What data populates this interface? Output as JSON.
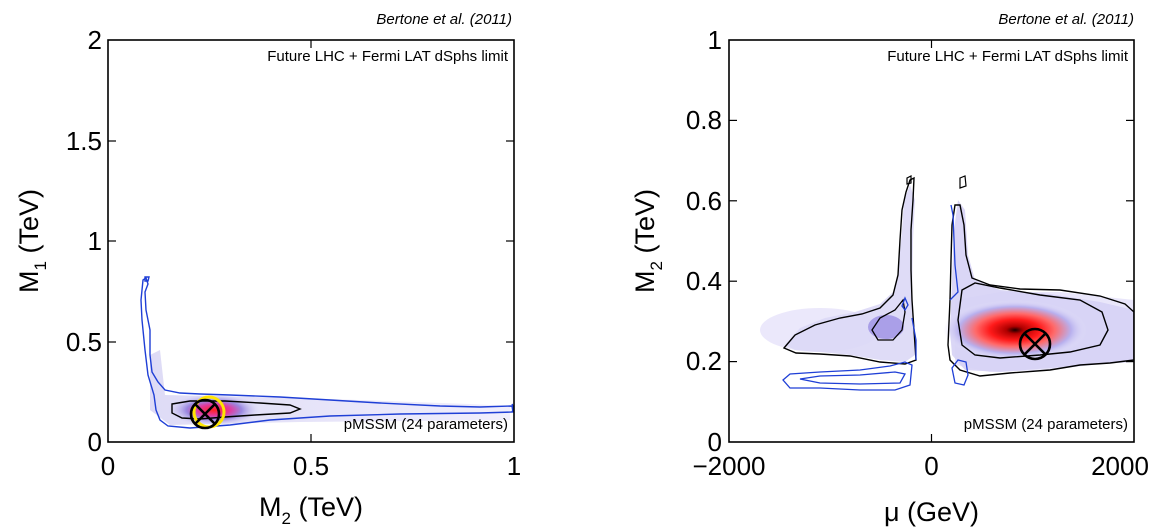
{
  "chart_data": [
    {
      "type": "heatmap",
      "citation": "Bertone et al. (2011)",
      "top_label": "Future LHC + Fermi LAT dSphs limit",
      "bottom_label": "pMSSM (24 parameters)",
      "xlabel": "M",
      "xlabel_sub": "2",
      "xlabel_unit": " (TeV)",
      "ylabel": "M",
      "ylabel_sub": "1",
      "ylabel_unit": " (TeV)",
      "xlim": [
        0,
        1
      ],
      "ylim": [
        0,
        2
      ],
      "xticks": [
        "0",
        "0.5",
        "1"
      ],
      "yticks": [
        "0",
        "0.5",
        "1",
        "1.5",
        "2"
      ],
      "best_fit_point": {
        "x": 0.24,
        "y": 0.14
      },
      "posterior_peak": {
        "x": 0.26,
        "y": 0.15
      },
      "colors": {
        "contour_68": "#000000",
        "contour_95": "#1f3fd6",
        "peak": "#ff2020",
        "low": "#c9c6ee",
        "best_fit_marker": "#000000",
        "highlight": "#ffe600"
      }
    },
    {
      "type": "heatmap",
      "citation": "Bertone et al. (2011)",
      "top_label": "Future LHC + Fermi LAT dSphs limit",
      "bottom_label": "pMSSM (24 parameters)",
      "xlabel": "μ (GeV)",
      "ylabel": "M",
      "ylabel_sub": "2",
      "ylabel_unit": " (TeV)",
      "xlim": [
        -2000,
        2000
      ],
      "ylim": [
        0,
        1
      ],
      "xticks": [
        "−2000",
        "0",
        "2000"
      ],
      "yticks": [
        "0",
        "0.2",
        "0.4",
        "0.6",
        "0.8",
        "1"
      ],
      "best_fit_point": {
        "x": 1050,
        "y": 0.245
      },
      "posterior_peak": {
        "x": 700,
        "y": 0.27
      },
      "colors": {
        "contour_68": "#000000",
        "contour_95": "#1f3fd6",
        "peak": "#ff2020",
        "low": "#c9c6ee",
        "best_fit_marker": "#000000"
      }
    }
  ]
}
